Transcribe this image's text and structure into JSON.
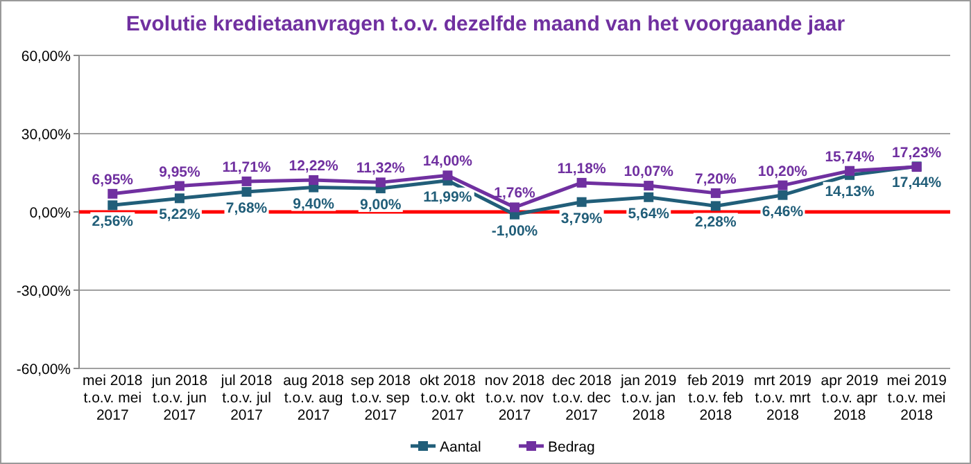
{
  "chart_data": {
    "type": "line",
    "title": "Evolutie kredietaanvragen t.o.v. dezelfde maand van het voorgaande jaar",
    "categories": [
      "mei 2018 t.o.v. mei 2017",
      "jun 2018 t.o.v. jun 2017",
      "jul 2018 t.o.v. jul 2017",
      "aug 2018 t.o.v. aug 2017",
      "sep 2018 t.o.v. sep 2017",
      "okt 2018 t.o.v. okt 2017",
      "nov 2018 t.o.v. nov 2017",
      "dec 2018 t.o.v. dec 2017",
      "jan 2019 t.o.v. jan 2018",
      "feb 2019 t.o.v. feb 2018",
      "mrt 2019 t.o.v. mrt 2018",
      "apr 2019 t.o.v. apr 2018",
      "mei 2019 t.o.v. mei 2018"
    ],
    "series": [
      {
        "name": "Aantal",
        "color": "#215e79",
        "values": [
          2.56,
          5.22,
          7.68,
          9.4,
          9.0,
          11.99,
          -1.0,
          3.79,
          5.64,
          2.28,
          6.46,
          14.13,
          17.44
        ],
        "value_labels": [
          "2,56%",
          "5,22%",
          "7,68%",
          "9,40%",
          "9,00%",
          "11,99%",
          "-1,00%",
          "3,79%",
          "5,64%",
          "2,28%",
          "6,46%",
          "14,13%",
          "17,44%"
        ]
      },
      {
        "name": "Bedrag",
        "color": "#7030a0",
        "values": [
          6.95,
          9.95,
          11.71,
          12.22,
          11.32,
          14.0,
          1.76,
          11.18,
          10.07,
          7.2,
          10.2,
          15.74,
          17.23
        ],
        "value_labels": [
          "6,95%",
          "9,95%",
          "11,71%",
          "12,22%",
          "11,32%",
          "14,00%",
          "1,76%",
          "11,18%",
          "10,07%",
          "7,20%",
          "10,20%",
          "15,74%",
          "17,23%"
        ]
      }
    ],
    "ylim": [
      -60,
      60
    ],
    "yticks": [
      {
        "value": -60,
        "label": "-60,00%"
      },
      {
        "value": -30,
        "label": "-30,00%"
      },
      {
        "value": 0,
        "label": "0,00%"
      },
      {
        "value": 30,
        "label": "30,00%"
      },
      {
        "value": 60,
        "label": "60,00%"
      }
    ],
    "grid": "y",
    "legend": "bottom",
    "marker": "square",
    "line_style": "solid",
    "ref_lines": [
      {
        "axis": "y",
        "value": 0,
        "color": "#ff0000"
      }
    ]
  }
}
